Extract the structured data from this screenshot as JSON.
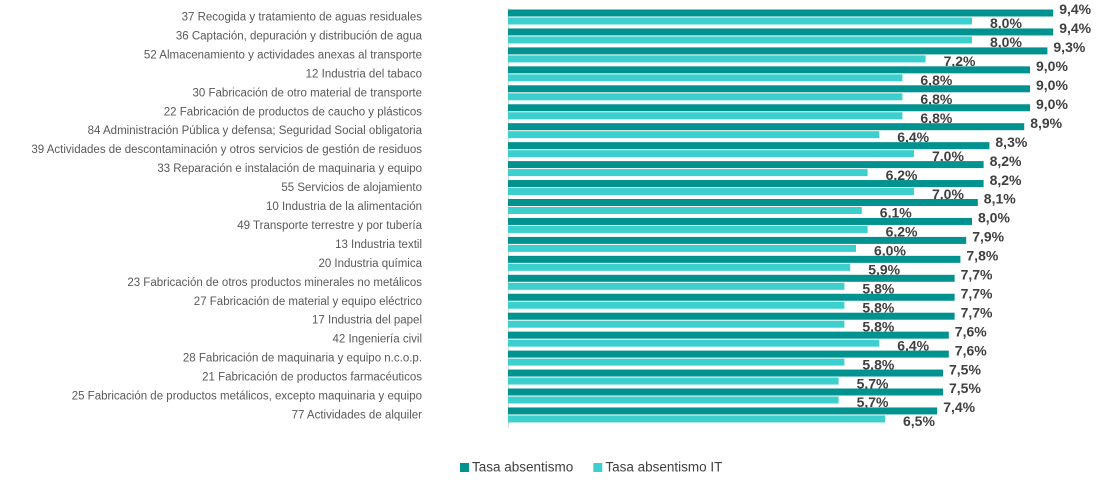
{
  "chart_data": {
    "type": "bar",
    "orientation": "horizontal",
    "categories": [
      "37 Recogida y tratamiento de aguas residuales",
      "36 Captación, depuración y distribución de agua",
      "52 Almacenamiento y actividades anexas al transporte",
      "12 Industria del tabaco",
      "30 Fabricación de otro material de transporte",
      "22 Fabricación de productos de caucho y plásticos",
      "84 Administración Pública y defensa; Seguridad Social obligatoria",
      "39 Actividades de descontaminación y otros servicios de gestión de residuos",
      "33 Reparación e instalación de maquinaria y equipo",
      "55 Servicios de alojamiento",
      "10 Industria de la alimentación",
      "49 Transporte terrestre y por tubería",
      "13 Industria textil",
      "20 Industria química",
      "23 Fabricación de otros productos minerales no metálicos",
      "27 Fabricación de material y equipo eléctrico",
      "17 Industria del papel",
      "42 Ingeniería civil",
      "28 Fabricación de maquinaria y equipo n.c.o.p.",
      "21 Fabricación de productos farmacéuticos",
      "25 Fabricación de productos metálicos, excepto maquinaria y equipo",
      "77 Actividades de alquiler"
    ],
    "series": [
      {
        "name": "Tasa absentismo",
        "color": "#00928f",
        "values": [
          9.4,
          9.4,
          9.3,
          9.0,
          9.0,
          9.0,
          8.9,
          8.3,
          8.2,
          8.2,
          8.1,
          8.0,
          7.9,
          7.8,
          7.7,
          7.7,
          7.7,
          7.6,
          7.6,
          7.5,
          7.5,
          7.4
        ],
        "value_labels": [
          "9,4%",
          "9,4%",
          "9,3%",
          "9,0%",
          "9,0%",
          "9,0%",
          "8,9%",
          "8,3%",
          "8,2%",
          "8,2%",
          "8,1%",
          "8,0%",
          "7,9%",
          "7,8%",
          "7,7%",
          "7,7%",
          "7,7%",
          "7,6%",
          "7,6%",
          "7,5%",
          "7,5%",
          "7,4%"
        ]
      },
      {
        "name": "Tasa absentismo IT",
        "color": "#3ccfce",
        "values": [
          8.0,
          8.0,
          7.2,
          6.8,
          6.8,
          6.8,
          6.4,
          7.0,
          6.2,
          7.0,
          6.1,
          6.2,
          6.0,
          5.9,
          5.8,
          5.8,
          5.8,
          6.4,
          5.8,
          5.7,
          5.7,
          6.5
        ],
        "value_labels": [
          "8,0%",
          "8,0%",
          "7,2%",
          "6,8%",
          "6,8%",
          "6,8%",
          "6,4%",
          "7,0%",
          "6,2%",
          "7,0%",
          "6,1%",
          "6,2%",
          "6,0%",
          "5,9%",
          "5,8%",
          "5,8%",
          "5,8%",
          "6,4%",
          "5,8%",
          "5,7%",
          "5,7%",
          "6,5%"
        ]
      }
    ],
    "legend": "bottom"
  }
}
